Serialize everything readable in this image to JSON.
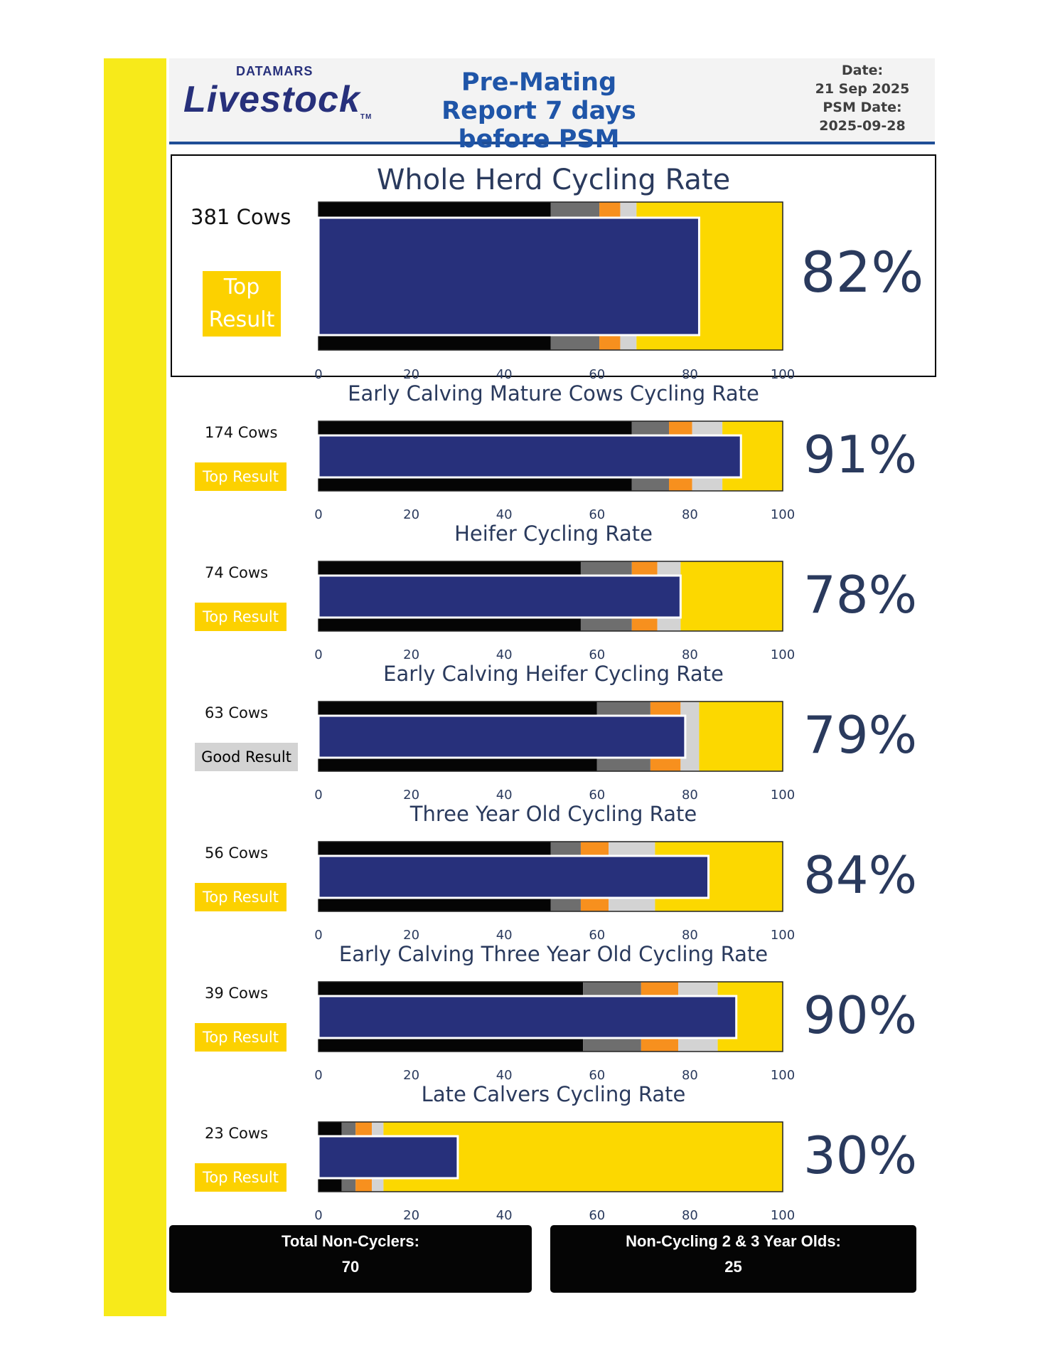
{
  "header": {
    "logo_top": "DATAMARS",
    "logo_main": "Livestock",
    "logo_tm": "TM",
    "title_line1": "Pre-Mating",
    "title_line2": "Report 7 days before PSM",
    "date_label": "Date:",
    "date_value": "21 Sep 2025",
    "psm_label": "PSM Date:",
    "psm_value": "2025-09-28"
  },
  "colors": {
    "stripe": "#f7ea1a",
    "bar": "#27307b",
    "band_black": "#050505",
    "band_dark_gray": "#6e6e6e",
    "band_orange": "#f7901e",
    "band_light_gray": "#d3d3d3",
    "band_yellow": "#fcd800"
  },
  "chart_data": [
    {
      "type": "bullet",
      "title": "Whole Herd Cycling Rate",
      "cows": "381 Cows",
      "badge": "Top",
      "badge2": "Result",
      "badge_type": "top",
      "value": 82,
      "value_label": "82%",
      "bands": [
        50,
        60.5,
        65,
        68.5,
        100
      ],
      "xlim": [
        0,
        100
      ],
      "ticks": [
        "0",
        "20",
        "40",
        "60",
        "80",
        "100"
      ]
    },
    {
      "type": "bullet",
      "title": "Early Calving Mature Cows Cycling Rate",
      "cows": "174 Cows",
      "badge": "Top Result",
      "badge_type": "top",
      "value": 91,
      "value_label": "91%",
      "bands": [
        67.5,
        75.5,
        80.5,
        87,
        100
      ],
      "xlim": [
        0,
        100
      ],
      "ticks": [
        "0",
        "20",
        "40",
        "60",
        "80",
        "100"
      ]
    },
    {
      "type": "bullet",
      "title": "Heifer Cycling Rate",
      "cows": "74 Cows",
      "badge": "Top Result",
      "badge_type": "top",
      "value": 78,
      "value_label": "78%",
      "bands": [
        56.5,
        67.5,
        73,
        78,
        100
      ],
      "xlim": [
        0,
        100
      ],
      "ticks": [
        "0",
        "20",
        "40",
        "60",
        "80",
        "100"
      ]
    },
    {
      "type": "bullet",
      "title": "Early Calving Heifer Cycling Rate",
      "cows": "63 Cows",
      "badge": "Good Result",
      "badge_type": "good",
      "value": 79,
      "value_label": "79%",
      "bands": [
        60,
        71.5,
        78,
        82,
        100
      ],
      "xlim": [
        0,
        100
      ],
      "ticks": [
        "0",
        "20",
        "40",
        "60",
        "80",
        "100"
      ]
    },
    {
      "type": "bullet",
      "title": "Three Year Old Cycling Rate",
      "cows": "56 Cows",
      "badge": "Top Result",
      "badge_type": "top",
      "value": 84,
      "value_label": "84%",
      "bands": [
        50,
        56.5,
        62.5,
        72.5,
        100
      ],
      "xlim": [
        0,
        100
      ],
      "ticks": [
        "0",
        "20",
        "40",
        "60",
        "80",
        "100"
      ]
    },
    {
      "type": "bullet",
      "title": "Early Calving Three Year Old Cycling Rate",
      "cows": "39 Cows",
      "badge": "Top Result",
      "badge_type": "top",
      "value": 90,
      "value_label": "90%",
      "bands": [
        57,
        69.5,
        77.5,
        86,
        100
      ],
      "xlim": [
        0,
        100
      ],
      "ticks": [
        "0",
        "20",
        "40",
        "60",
        "80",
        "100"
      ]
    },
    {
      "type": "bullet",
      "title": "Late Calvers Cycling Rate",
      "cows": "23 Cows",
      "badge": "Top Result",
      "badge_type": "top",
      "value": 30,
      "value_label": "30%",
      "bands": [
        5,
        8,
        11.5,
        14,
        100
      ],
      "xlim": [
        0,
        100
      ],
      "ticks": [
        "0",
        "20",
        "40",
        "60",
        "80",
        "100"
      ]
    }
  ],
  "footer": {
    "non_cyclers_label": "Total Non-Cyclers:",
    "non_cyclers_value": "70",
    "young_label": "Non-Cycling 2 & 3 Year Olds:",
    "young_value": "25"
  }
}
